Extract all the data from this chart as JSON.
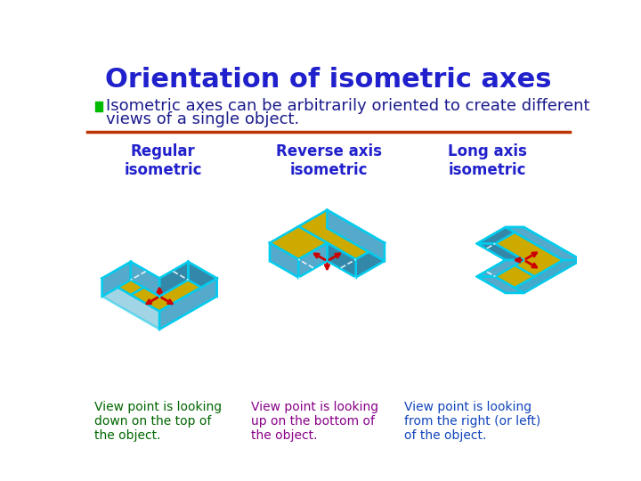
{
  "title": "Orientation of isometric axes",
  "title_color": "#2020CC",
  "title_fontsize": 22,
  "subtitle_line1": "Isometric axes can be arbitrarily oriented to create different",
  "subtitle_line2": "views of a single object.",
  "subtitle_color": "#1a1a8c",
  "subtitle_fontsize": 13,
  "bullet_color": "#00bb00",
  "divider_color": "#bb3300",
  "col_labels": [
    "Regular\nisometric",
    "Reverse axis\nisometric",
    "Long axis\nisometric"
  ],
  "col_label_color": "#2020CC",
  "col_label_fontsize": 12,
  "desc_texts": [
    "View point is looking\ndown on the top of\nthe object.",
    "View point is looking\nup on the bottom of\nthe object.",
    "View point is looking\nfrom the right (or left)\nof the object."
  ],
  "desc_colors": [
    "#006600",
    "#880088",
    "#1144bb"
  ],
  "desc_fontsize": 10,
  "bg_color": "#ffffff",
  "cyan_color": "#00ccee",
  "gold_color": "#ccaa00",
  "red_color": "#cc0000",
  "blue_light": "#55aacc",
  "blue_dark": "#3388aa",
  "blue_mid": "#44aacc"
}
